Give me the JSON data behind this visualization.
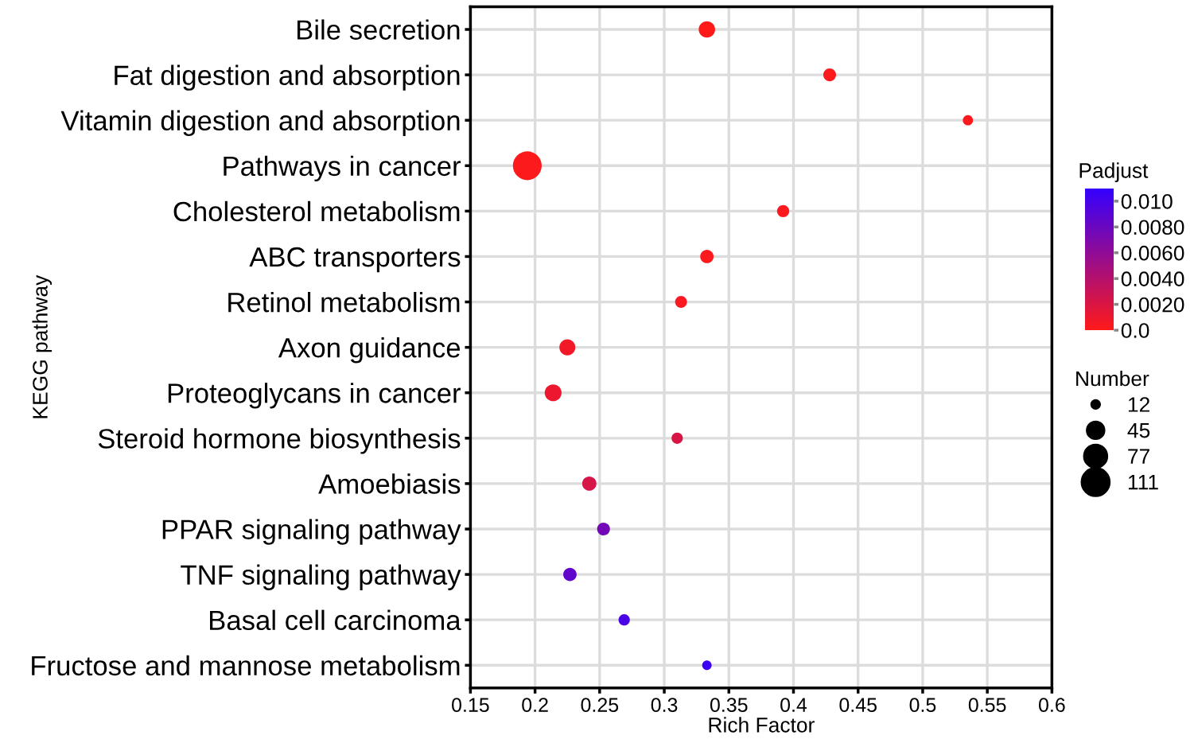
{
  "chart_data": {
    "type": "bubble",
    "orientation": "horizontal",
    "categories": [
      "Bile secretion",
      "Fat digestion and absorption",
      "Vitamin digestion and absorption",
      "Pathways in cancer",
      "Cholesterol metabolism",
      "ABC transporters",
      "Retinol metabolism",
      "Axon guidance",
      "Proteoglycans in cancer",
      "Steroid hormone biosynthesis",
      "Amoebiasis",
      "PPAR signaling pathway",
      "TNF signaling pathway",
      "Basal cell carcinoma",
      "Fructose and mannose metabolism"
    ],
    "values": [
      0.333,
      0.428,
      0.535,
      0.194,
      0.392,
      0.333,
      0.313,
      0.225,
      0.214,
      0.31,
      0.242,
      0.253,
      0.227,
      0.269,
      0.333
    ],
    "sizes": [
      36,
      22,
      14,
      111,
      20,
      24,
      19,
      34,
      38,
      17,
      27,
      22,
      24,
      17,
      12
    ],
    "size_legend": [
      12,
      45,
      77,
      111
    ],
    "cvalues": [
      0.0,
      0.0001,
      0.0001,
      0.0001,
      0.0002,
      0.0002,
      0.0004,
      0.0007,
      0.001,
      0.0021,
      0.0022,
      0.0075,
      0.0085,
      0.0098,
      0.0105
    ],
    "clim": [
      0,
      0.011
    ],
    "cticks": [
      {
        "value": 0.0,
        "label": "0.0"
      },
      {
        "value": 0.002,
        "label": "0.0020"
      },
      {
        "value": 0.004,
        "label": "0.0040"
      },
      {
        "value": 0.006,
        "label": "0.0060"
      },
      {
        "value": 0.008,
        "label": "0.0080"
      },
      {
        "value": 0.01,
        "label": "0.010"
      }
    ],
    "clabel": "Padjust",
    "legend_title": "Number",
    "xlabel": "Rich Factor",
    "ylabel": "KEGG pathway",
    "xlim": [
      0.15,
      0.6
    ],
    "xticks": [
      0.15,
      0.2,
      0.25,
      0.3,
      0.35,
      0.4,
      0.45,
      0.5,
      0.55,
      0.6
    ],
    "grid": true
  }
}
